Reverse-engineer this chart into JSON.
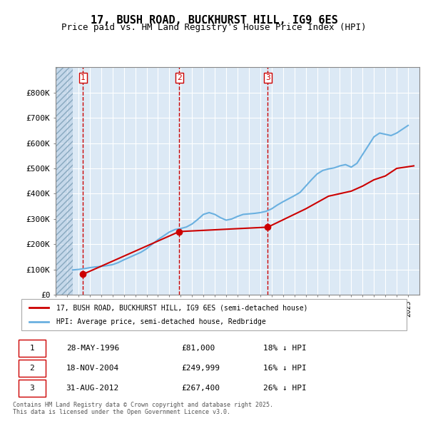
{
  "title": "17, BUSH ROAD, BUCKHURST HILL, IG9 6ES",
  "subtitle": "Price paid vs. HM Land Registry's House Price Index (HPI)",
  "background_color": "#ffffff",
  "plot_bg_color": "#dce9f5",
  "hatch_color": "#c0d0e0",
  "grid_color": "#ffffff",
  "ylim": [
    0,
    900000
  ],
  "yticks": [
    0,
    100000,
    200000,
    300000,
    400000,
    500000,
    600000,
    700000,
    800000
  ],
  "ytick_labels": [
    "£0",
    "£100K",
    "£200K",
    "£300K",
    "£400K",
    "£500K",
    "£600K",
    "£700K",
    "£800K"
  ],
  "xlim_start": 1994.0,
  "xlim_end": 2026.0,
  "hpi_color": "#6ab0e0",
  "sale_color": "#cc0000",
  "sale_dates": [
    1996.41,
    2004.88,
    2012.66
  ],
  "sale_prices": [
    81000,
    249999,
    267400
  ],
  "sale_labels": [
    "1",
    "2",
    "3"
  ],
  "vline_color": "#cc0000",
  "legend_sale_label": "17, BUSH ROAD, BUCKHURST HILL, IG9 6ES (semi-detached house)",
  "legend_hpi_label": "HPI: Average price, semi-detached house, Redbridge",
  "table_rows": [
    [
      "1",
      "28-MAY-1996",
      "£81,000",
      "18% ↓ HPI"
    ],
    [
      "2",
      "18-NOV-2004",
      "£249,999",
      "16% ↓ HPI"
    ],
    [
      "3",
      "31-AUG-2012",
      "£267,400",
      "26% ↓ HPI"
    ]
  ],
  "footer": "Contains HM Land Registry data © Crown copyright and database right 2025.\nThis data is licensed under the Open Government Licence v3.0.",
  "hatch_end_year": 1995.5,
  "hpi_years": [
    1995.5,
    1996,
    1996.5,
    1997,
    1997.5,
    1998,
    1998.5,
    1999,
    1999.5,
    2000,
    2000.5,
    2001,
    2001.5,
    2002,
    2002.5,
    2003,
    2003.5,
    2004,
    2004.5,
    2005,
    2005.5,
    2006,
    2006.5,
    2007,
    2007.5,
    2008,
    2008.5,
    2009,
    2009.5,
    2010,
    2010.5,
    2011,
    2011.5,
    2012,
    2012.5,
    2013,
    2013.5,
    2014,
    2014.5,
    2015,
    2015.5,
    2016,
    2016.5,
    2017,
    2017.5,
    2018,
    2018.5,
    2019,
    2019.5,
    2020,
    2020.5,
    2021,
    2021.5,
    2022,
    2022.5,
    2023,
    2023.5,
    2024,
    2024.5,
    2025
  ],
  "hpi_values": [
    98000,
    100000,
    103000,
    107000,
    110000,
    112000,
    115000,
    119000,
    127000,
    138000,
    148000,
    158000,
    168000,
    182000,
    200000,
    218000,
    233000,
    248000,
    258000,
    262000,
    268000,
    280000,
    298000,
    318000,
    325000,
    318000,
    305000,
    295000,
    300000,
    310000,
    318000,
    320000,
    322000,
    325000,
    330000,
    340000,
    355000,
    368000,
    380000,
    392000,
    405000,
    430000,
    455000,
    478000,
    492000,
    498000,
    502000,
    510000,
    515000,
    505000,
    520000,
    555000,
    590000,
    625000,
    640000,
    635000,
    630000,
    640000,
    655000,
    670000
  ]
}
